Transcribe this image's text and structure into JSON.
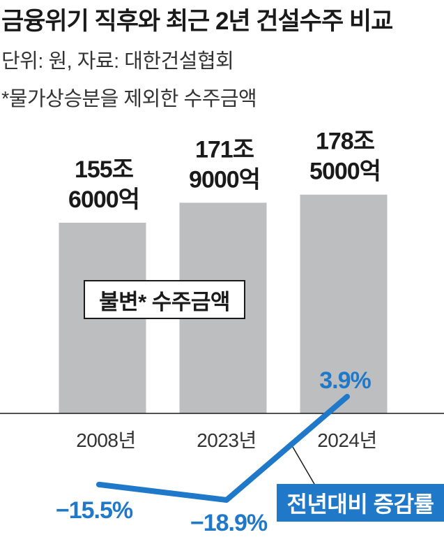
{
  "header": {
    "title": "금융위기 직후와 최근 2년 건설수주 비교",
    "unit_source": "단위: 원, 자료: 대한건설협회",
    "note": "*물가상승분을 제외한 수주금액"
  },
  "chart_data": {
    "type": "bar",
    "categories": [
      "2008년",
      "2023년",
      "2024년"
    ],
    "series": [
      {
        "name": "불변* 수주금액",
        "values": [
          155.6,
          171.9,
          178.5
        ],
        "value_labels": [
          [
            "155조",
            "6000억"
          ],
          [
            "171조",
            "9000억"
          ],
          [
            "178조",
            "5000억"
          ]
        ],
        "color": "#bdbec0"
      },
      {
        "name": "전년대비 증감률",
        "type": "line",
        "values": [
          -15.5,
          -18.9,
          3.9
        ],
        "value_labels": [
          "−15.5%",
          "−18.9%",
          "3.9%"
        ],
        "color": "#1f78c8"
      }
    ]
  }
}
